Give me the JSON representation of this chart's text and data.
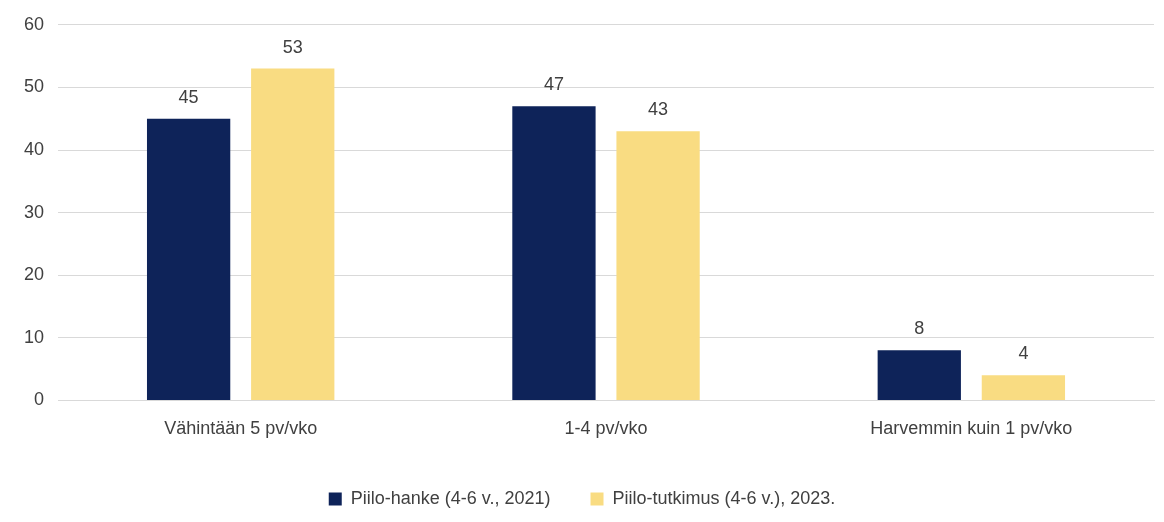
{
  "chart_data": {
    "type": "bar",
    "categories": [
      "Vähintään 5 pv/vko",
      "1-4 pv/vko",
      "Harvemmin kuin 1 pv/vko"
    ],
    "series": [
      {
        "name": "Piilo-hanke (4-6 v., 2021)",
        "color": "#0e2359",
        "values": [
          45,
          47,
          8
        ]
      },
      {
        "name": "Piilo-tutkimus (4-6 v.), 2023.",
        "color": "#f9dc82",
        "values": [
          53,
          43,
          4
        ]
      }
    ],
    "ylim": [
      0,
      60
    ],
    "yticks": [
      0,
      10,
      20,
      30,
      40,
      50,
      60
    ],
    "grid": "y",
    "legend": "bottom",
    "data_labels": true
  }
}
